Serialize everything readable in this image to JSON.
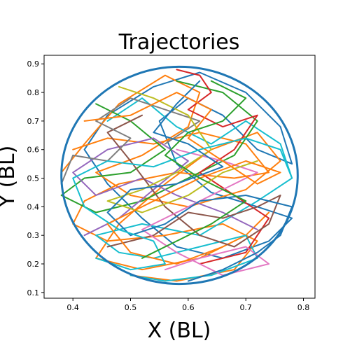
{
  "chart_data": {
    "type": "line",
    "title": "Trajectories",
    "xlabel": "X (BL)",
    "ylabel": "Y (BL)",
    "xlim": [
      0.35,
      0.82
    ],
    "ylim": [
      0.08,
      0.93
    ],
    "xticks": [
      "0.4",
      "0.5",
      "0.6",
      "0.7",
      "0.8"
    ],
    "yticks": [
      "0.1",
      "0.2",
      "0.3",
      "0.4",
      "0.5",
      "0.6",
      "0.7",
      "0.8",
      "0.9"
    ],
    "legend": "none",
    "grid": false,
    "arena": {
      "center": [
        0.585,
        0.51
      ],
      "radius_x": 0.205,
      "radius_y": 0.38
    },
    "colors": [
      "#1f77b4",
      "#ff7f0e",
      "#2ca02c",
      "#d62728",
      "#9467bd",
      "#8c564b",
      "#e377c2",
      "#7f7f7f",
      "#bcbd22",
      "#17becf"
    ],
    "series": [
      {
        "color": "#1f77b4",
        "values": [
          [
            0.62,
            0.87
          ],
          [
            0.7,
            0.8
          ],
          [
            0.76,
            0.68
          ],
          [
            0.78,
            0.55
          ],
          [
            0.72,
            0.6
          ],
          [
            0.66,
            0.72
          ],
          [
            0.6,
            0.78
          ],
          [
            0.55,
            0.7
          ],
          [
            0.58,
            0.55
          ],
          [
            0.64,
            0.45
          ],
          [
            0.72,
            0.4
          ],
          [
            0.78,
            0.36
          ],
          [
            0.74,
            0.28
          ],
          [
            0.66,
            0.22
          ],
          [
            0.58,
            0.26
          ],
          [
            0.52,
            0.36
          ],
          [
            0.46,
            0.48
          ],
          [
            0.42,
            0.6
          ],
          [
            0.46,
            0.72
          ],
          [
            0.54,
            0.82
          ],
          [
            0.62,
            0.87
          ]
        ]
      },
      {
        "color": "#ff7f0e",
        "values": [
          [
            0.38,
            0.52
          ],
          [
            0.42,
            0.62
          ],
          [
            0.48,
            0.76
          ],
          [
            0.56,
            0.86
          ],
          [
            0.62,
            0.8
          ],
          [
            0.6,
            0.68
          ],
          [
            0.52,
            0.58
          ],
          [
            0.44,
            0.52
          ],
          [
            0.5,
            0.44
          ],
          [
            0.6,
            0.4
          ],
          [
            0.7,
            0.46
          ],
          [
            0.76,
            0.56
          ],
          [
            0.72,
            0.66
          ],
          [
            0.64,
            0.6
          ],
          [
            0.56,
            0.48
          ],
          [
            0.48,
            0.34
          ],
          [
            0.44,
            0.22
          ],
          [
            0.52,
            0.18
          ],
          [
            0.62,
            0.22
          ],
          [
            0.7,
            0.3
          ],
          [
            0.74,
            0.38
          ]
        ]
      },
      {
        "color": "#ff7f0e",
        "values": [
          [
            0.4,
            0.6
          ],
          [
            0.46,
            0.64
          ],
          [
            0.54,
            0.62
          ],
          [
            0.62,
            0.66
          ],
          [
            0.7,
            0.62
          ],
          [
            0.74,
            0.52
          ],
          [
            0.68,
            0.5
          ],
          [
            0.58,
            0.52
          ],
          [
            0.48,
            0.48
          ],
          [
            0.42,
            0.42
          ],
          [
            0.4,
            0.34
          ],
          [
            0.46,
            0.28
          ],
          [
            0.56,
            0.3
          ],
          [
            0.66,
            0.34
          ],
          [
            0.72,
            0.28
          ],
          [
            0.68,
            0.18
          ],
          [
            0.58,
            0.14
          ],
          [
            0.5,
            0.16
          ]
        ]
      },
      {
        "color": "#17becf",
        "values": [
          [
            0.5,
            0.16
          ],
          [
            0.56,
            0.14
          ],
          [
            0.64,
            0.16
          ],
          [
            0.72,
            0.22
          ],
          [
            0.7,
            0.3
          ],
          [
            0.62,
            0.26
          ],
          [
            0.54,
            0.22
          ],
          [
            0.48,
            0.24
          ],
          [
            0.44,
            0.3
          ],
          [
            0.52,
            0.34
          ],
          [
            0.62,
            0.3
          ],
          [
            0.72,
            0.42
          ],
          [
            0.78,
            0.5
          ],
          [
            0.76,
            0.62
          ],
          [
            0.7,
            0.7
          ],
          [
            0.64,
            0.62
          ],
          [
            0.58,
            0.68
          ],
          [
            0.52,
            0.78
          ],
          [
            0.46,
            0.7
          ]
        ]
      },
      {
        "color": "#2ca02c",
        "values": [
          [
            0.44,
            0.76
          ],
          [
            0.5,
            0.7
          ],
          [
            0.56,
            0.6
          ],
          [
            0.5,
            0.52
          ],
          [
            0.42,
            0.5
          ],
          [
            0.38,
            0.44
          ],
          [
            0.44,
            0.38
          ],
          [
            0.52,
            0.42
          ],
          [
            0.6,
            0.5
          ],
          [
            0.68,
            0.58
          ],
          [
            0.72,
            0.7
          ],
          [
            0.66,
            0.8
          ],
          [
            0.58,
            0.84
          ]
        ]
      },
      {
        "color": "#d62728",
        "values": [
          [
            0.58,
            0.88
          ],
          [
            0.62,
            0.86
          ],
          [
            0.64,
            0.8
          ],
          [
            0.6,
            0.74
          ],
          [
            0.66,
            0.68
          ],
          [
            0.72,
            0.72
          ],
          [
            0.68,
            0.6
          ],
          [
            0.62,
            0.52
          ],
          [
            0.68,
            0.44
          ],
          [
            0.74,
            0.36
          ],
          [
            0.7,
            0.24
          ],
          [
            0.62,
            0.2
          ]
        ]
      },
      {
        "color": "#9467bd",
        "values": [
          [
            0.42,
            0.3
          ],
          [
            0.48,
            0.36
          ],
          [
            0.54,
            0.46
          ],
          [
            0.6,
            0.56
          ],
          [
            0.54,
            0.64
          ],
          [
            0.46,
            0.6
          ],
          [
            0.4,
            0.52
          ],
          [
            0.44,
            0.44
          ],
          [
            0.52,
            0.5
          ],
          [
            0.58,
            0.44
          ],
          [
            0.66,
            0.38
          ],
          [
            0.72,
            0.32
          ]
        ]
      },
      {
        "color": "#8c564b",
        "values": [
          [
            0.46,
            0.26
          ],
          [
            0.54,
            0.3
          ],
          [
            0.6,
            0.38
          ],
          [
            0.66,
            0.36
          ],
          [
            0.72,
            0.4
          ],
          [
            0.76,
            0.44
          ],
          [
            0.74,
            0.34
          ],
          [
            0.68,
            0.26
          ],
          [
            0.62,
            0.3
          ],
          [
            0.56,
            0.4
          ],
          [
            0.5,
            0.56
          ],
          [
            0.46,
            0.66
          ],
          [
            0.52,
            0.72
          ]
        ]
      },
      {
        "color": "#e377c2",
        "values": [
          [
            0.56,
            0.18
          ],
          [
            0.62,
            0.22
          ],
          [
            0.7,
            0.26
          ],
          [
            0.74,
            0.2
          ],
          [
            0.66,
            0.16
          ],
          [
            0.58,
            0.24
          ],
          [
            0.52,
            0.32
          ],
          [
            0.58,
            0.38
          ],
          [
            0.66,
            0.46
          ],
          [
            0.72,
            0.52
          ],
          [
            0.66,
            0.56
          ],
          [
            0.58,
            0.6
          ]
        ]
      },
      {
        "color": "#7f7f7f",
        "values": [
          [
            0.38,
            0.48
          ],
          [
            0.4,
            0.58
          ],
          [
            0.46,
            0.56
          ],
          [
            0.5,
            0.64
          ],
          [
            0.44,
            0.7
          ],
          [
            0.5,
            0.78
          ],
          [
            0.56,
            0.74
          ],
          [
            0.62,
            0.7
          ],
          [
            0.56,
            0.62
          ]
        ]
      },
      {
        "color": "#bcbd22",
        "values": [
          [
            0.48,
            0.82
          ],
          [
            0.54,
            0.78
          ],
          [
            0.6,
            0.72
          ],
          [
            0.64,
            0.6
          ],
          [
            0.58,
            0.52
          ],
          [
            0.52,
            0.46
          ],
          [
            0.46,
            0.42
          ],
          [
            0.52,
            0.38
          ],
          [
            0.6,
            0.44
          ],
          [
            0.66,
            0.52
          ],
          [
            0.72,
            0.56
          ]
        ]
      },
      {
        "color": "#1f77b4",
        "values": [
          [
            0.6,
            0.14
          ],
          [
            0.66,
            0.18
          ],
          [
            0.72,
            0.24
          ],
          [
            0.76,
            0.3
          ],
          [
            0.78,
            0.4
          ],
          [
            0.7,
            0.44
          ],
          [
            0.62,
            0.42
          ],
          [
            0.56,
            0.34
          ],
          [
            0.5,
            0.3
          ],
          [
            0.46,
            0.38
          ],
          [
            0.5,
            0.46
          ],
          [
            0.58,
            0.48
          ],
          [
            0.66,
            0.54
          ],
          [
            0.6,
            0.62
          ],
          [
            0.54,
            0.66
          ],
          [
            0.58,
            0.76
          ],
          [
            0.62,
            0.84
          ]
        ]
      },
      {
        "color": "#ff7f0e",
        "values": [
          [
            0.42,
            0.7
          ],
          [
            0.5,
            0.72
          ],
          [
            0.58,
            0.8
          ],
          [
            0.64,
            0.74
          ],
          [
            0.6,
            0.64
          ],
          [
            0.66,
            0.56
          ],
          [
            0.72,
            0.48
          ],
          [
            0.76,
            0.52
          ],
          [
            0.7,
            0.56
          ],
          [
            0.62,
            0.5
          ],
          [
            0.54,
            0.42
          ],
          [
            0.46,
            0.34
          ],
          [
            0.5,
            0.24
          ],
          [
            0.58,
            0.2
          ],
          [
            0.66,
            0.26
          ]
        ]
      },
      {
        "color": "#17becf",
        "values": [
          [
            0.44,
            0.22
          ],
          [
            0.5,
            0.18
          ],
          [
            0.56,
            0.2
          ],
          [
            0.54,
            0.28
          ],
          [
            0.48,
            0.32
          ],
          [
            0.42,
            0.4
          ],
          [
            0.4,
            0.5
          ],
          [
            0.46,
            0.56
          ],
          [
            0.54,
            0.54
          ],
          [
            0.62,
            0.6
          ],
          [
            0.7,
            0.64
          ],
          [
            0.76,
            0.6
          ],
          [
            0.78,
            0.5
          ]
        ]
      },
      {
        "color": "#2ca02c",
        "values": [
          [
            0.64,
            0.84
          ],
          [
            0.7,
            0.78
          ],
          [
            0.66,
            0.7
          ],
          [
            0.6,
            0.66
          ],
          [
            0.56,
            0.58
          ],
          [
            0.62,
            0.5
          ],
          [
            0.7,
            0.42
          ],
          [
            0.64,
            0.34
          ],
          [
            0.58,
            0.28
          ],
          [
            0.52,
            0.22
          ]
        ]
      }
    ]
  }
}
